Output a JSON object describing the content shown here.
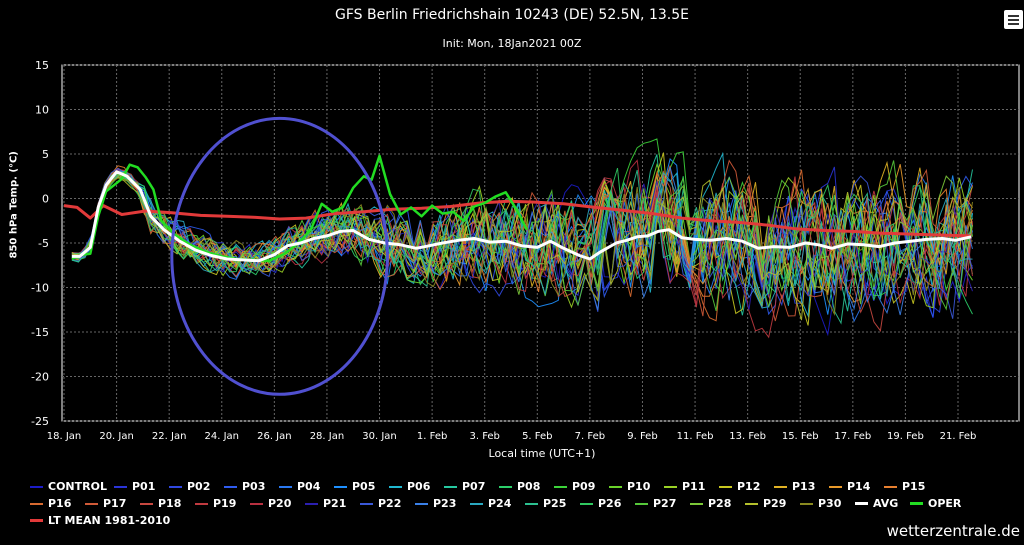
{
  "header": {
    "menu_icon": "hamburger-icon"
  },
  "watermark": "wetterzentrale.de",
  "chart_data": {
    "type": "line",
    "title": "GFS Berlin Friedrichshain 10243 (DE) 52.5N, 13.5E",
    "subtitle": "Init: Mon, 18Jan2021 00Z",
    "xlabel": "Local time (UTC+1)",
    "ylabel": "850 hPa Temp. (°C)",
    "ylim": [
      -25,
      15
    ],
    "yticks": [
      15,
      10,
      5,
      0,
      -5,
      -10,
      -15,
      -20,
      -25
    ],
    "xlim_days": [
      0,
      3.2
    ],
    "x_tick_labels": [
      "18. Jan",
      "20. Jan",
      "22. Jan",
      "24. Jan",
      "26. Jan",
      "28. Jan",
      "30. Jan",
      "1. Feb",
      "3. Feb",
      "5. Feb",
      "7. Feb",
      "9. Feb",
      "11. Feb",
      "13. Feb",
      "15. Feb",
      "17. Feb",
      "19. Feb",
      "21. Feb"
    ],
    "grid": true,
    "legend_position": "bottom",
    "annotation": "blue ellipse around 22. Jan – 29. Jan",
    "members": [
      "CONTROL",
      "P01",
      "P02",
      "P03",
      "P04",
      "P05",
      "P06",
      "P07",
      "P08",
      "P09",
      "P10",
      "P11",
      "P12",
      "P13",
      "P14",
      "P15",
      "P16",
      "P17",
      "P18",
      "P19",
      "P20",
      "P21",
      "P22",
      "P23",
      "P24",
      "P25",
      "P26",
      "P27",
      "P28",
      "P29",
      "P30"
    ],
    "member_colors": [
      "#1c1cc8",
      "#2a34d8",
      "#3048e0",
      "#2f5cf0",
      "#2a78f0",
      "#1e90ff",
      "#20b8d0",
      "#26c8a0",
      "#2ccf6a",
      "#3cd43a",
      "#6ad32a",
      "#9ad226",
      "#c8c820",
      "#e0b224",
      "#e89a2a",
      "#e88030",
      "#d86a30",
      "#d05a38",
      "#c84840",
      "#c03a40",
      "#b83040",
      "#2b1fb0",
      "#3a58d8",
      "#3a80e8",
      "#2aa8c0",
      "#2cc090",
      "#30c860",
      "#56c83a",
      "#7cc838",
      "#b4c02c",
      "#8a8a20"
    ],
    "avg": {
      "name": "AVG",
      "color": "#ffffff",
      "points": [
        [
          0.3,
          -6.5
        ],
        [
          0.6,
          -6.5
        ],
        [
          1,
          -5.5
        ],
        [
          1.3,
          -1
        ],
        [
          1.6,
          1.5
        ],
        [
          2,
          3
        ],
        [
          2.4,
          2.5
        ],
        [
          2.9,
          1
        ],
        [
          3.3,
          -2
        ],
        [
          3.8,
          -3.5
        ],
        [
          4.4,
          -4.8
        ],
        [
          5,
          -5.8
        ],
        [
          5.6,
          -6.4
        ],
        [
          6.2,
          -6.8
        ],
        [
          6.8,
          -6.9
        ],
        [
          7.4,
          -7
        ],
        [
          8,
          -6.3
        ],
        [
          8.5,
          -5.3
        ],
        [
          9,
          -5
        ],
        [
          9.5,
          -4.5
        ],
        [
          10,
          -4.2
        ],
        [
          10.5,
          -3.7
        ],
        [
          11,
          -3.6
        ],
        [
          11.6,
          -4.6
        ],
        [
          12.2,
          -5
        ],
        [
          12.8,
          -5.2
        ],
        [
          13.4,
          -5.6
        ],
        [
          13.9,
          -5.3
        ],
        [
          14.4,
          -5
        ],
        [
          15,
          -4.7
        ],
        [
          15.6,
          -4.5
        ],
        [
          16.2,
          -4.9
        ],
        [
          16.8,
          -4.8
        ],
        [
          17.4,
          -5.3
        ],
        [
          18,
          -5.5
        ],
        [
          18.5,
          -4.8
        ],
        [
          19,
          -5.6
        ],
        [
          19.6,
          -6.4
        ],
        [
          20,
          -6.8
        ],
        [
          20.4,
          -6
        ],
        [
          21,
          -5
        ],
        [
          21.4,
          -4.7
        ],
        [
          21.8,
          -4.3
        ],
        [
          22.2,
          -4.2
        ],
        [
          22.6,
          -3.7
        ],
        [
          23,
          -3.5
        ],
        [
          23.5,
          -4.4
        ],
        [
          24,
          -4.6
        ],
        [
          24.6,
          -4.7
        ],
        [
          25.2,
          -4.5
        ],
        [
          25.8,
          -4.8
        ],
        [
          26.4,
          -5.6
        ],
        [
          27,
          -5.4
        ],
        [
          27.6,
          -5.5
        ],
        [
          28.2,
          -5
        ],
        [
          28.7,
          -5.2
        ],
        [
          29.2,
          -5.6
        ],
        [
          29.8,
          -5.1
        ],
        [
          30.4,
          -5.2
        ],
        [
          31,
          -5.4
        ],
        [
          31.6,
          -5
        ],
        [
          32.2,
          -4.8
        ],
        [
          32.8,
          -4.6
        ],
        [
          33.4,
          -4.5
        ],
        [
          33.9,
          -4.7
        ],
        [
          34.5,
          -4.3
        ]
      ]
    },
    "oper": {
      "name": "OPER",
      "color": "#22dd22",
      "points": [
        [
          0.3,
          -6.8
        ],
        [
          0.7,
          -6.3
        ],
        [
          1,
          -6.2
        ],
        [
          1.3,
          -2
        ],
        [
          1.6,
          0.8
        ],
        [
          1.9,
          1.5
        ],
        [
          2.2,
          2.2
        ],
        [
          2.5,
          3.8
        ],
        [
          2.8,
          3.5
        ],
        [
          3.1,
          2.4
        ],
        [
          3.4,
          1
        ],
        [
          3.7,
          -2.5
        ],
        [
          4.2,
          -4
        ],
        [
          4.8,
          -5.2
        ],
        [
          5.4,
          -6
        ],
        [
          6,
          -6.5
        ],
        [
          6.6,
          -6.8
        ],
        [
          7.2,
          -6.9
        ],
        [
          7.8,
          -7
        ],
        [
          8.4,
          -6.2
        ],
        [
          9,
          -4.8
        ],
        [
          9.4,
          -3.4
        ],
        [
          9.8,
          -0.6
        ],
        [
          10.2,
          -1.5
        ],
        [
          10.6,
          -1
        ],
        [
          11,
          1.2
        ],
        [
          11.4,
          2.5
        ],
        [
          11.7,
          2.1
        ],
        [
          12,
          4.8
        ],
        [
          12.4,
          0.5
        ],
        [
          12.8,
          -1.8
        ],
        [
          13.2,
          -1
        ],
        [
          13.6,
          -2
        ],
        [
          14,
          -0.8
        ],
        [
          14.4,
          -1.7
        ],
        [
          14.8,
          -1.5
        ],
        [
          15.2,
          -2.5
        ],
        [
          15.6,
          -0.9
        ],
        [
          16,
          -0.5
        ],
        [
          16.4,
          0.2
        ],
        [
          16.8,
          0.7
        ],
        [
          17.2,
          -1.2
        ],
        [
          17.6,
          -3.5
        ]
      ]
    },
    "lt_mean": {
      "name": "LT MEAN 1981-2010",
      "color": "#e23a3a",
      "points": [
        [
          0,
          -0.8
        ],
        [
          0.5,
          -1
        ],
        [
          1,
          -2.2
        ],
        [
          1.5,
          -0.8
        ],
        [
          2.2,
          -1.8
        ],
        [
          3.1,
          -1.4
        ],
        [
          4.1,
          -1.6
        ],
        [
          5.2,
          -1.9
        ],
        [
          6.2,
          -2
        ],
        [
          7.2,
          -2.1
        ],
        [
          8.2,
          -2.3
        ],
        [
          9.2,
          -2.2
        ],
        [
          10.3,
          -1.7
        ],
        [
          11.4,
          -1.5
        ],
        [
          12.5,
          -1.2
        ],
        [
          13.6,
          -1.1
        ],
        [
          14.7,
          -0.9
        ],
        [
          15.8,
          -0.5
        ],
        [
          16.9,
          -0.3
        ],
        [
          17.9,
          -0.4
        ],
        [
          19,
          -0.6
        ],
        [
          20.2,
          -1
        ],
        [
          21.2,
          -1.3
        ],
        [
          22.4,
          -1.7
        ],
        [
          23.5,
          -2.2
        ],
        [
          24.6,
          -2.5
        ],
        [
          25.7,
          -2.7
        ],
        [
          26.8,
          -3
        ],
        [
          27.8,
          -3.4
        ],
        [
          28.9,
          -3.6
        ],
        [
          30,
          -3.7
        ],
        [
          31.1,
          -3.9
        ],
        [
          32.2,
          -4
        ],
        [
          33.3,
          -4.1
        ],
        [
          34.5,
          -4.2
        ]
      ]
    }
  }
}
